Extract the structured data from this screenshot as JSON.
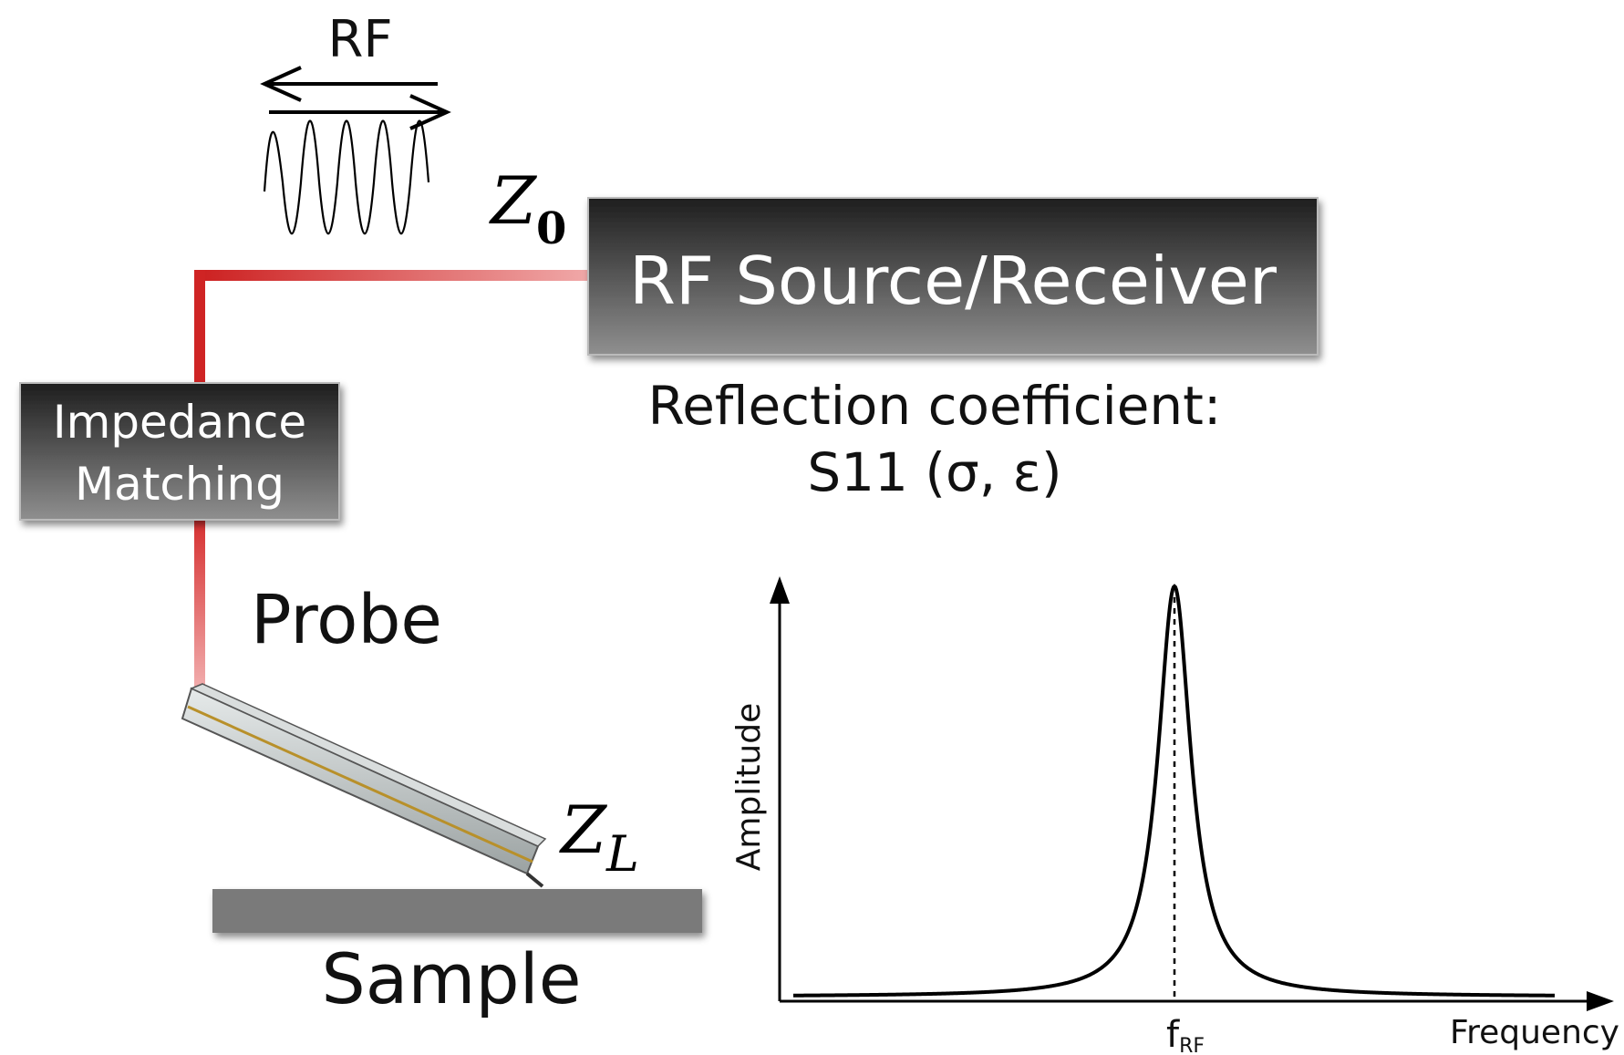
{
  "rf_label": "RF",
  "z0_label": "Z",
  "z0_sub": "0",
  "source_box_label": "RF Source/Receiver",
  "impedance_box_line1": "Impedance",
  "impedance_box_line2": "Matching",
  "reflection_line1": "Reflection coefficient:",
  "reflection_line2": "S11 (σ, ε)",
  "probe_label": "Probe",
  "zl_label": "Z",
  "zl_sub": "L",
  "sample_label": "Sample",
  "chart_data": {
    "type": "line",
    "xlabel": "Frequency",
    "ylabel": "Amplitude",
    "xtick_main": "f",
    "xtick_sub": "RF",
    "series": [
      {
        "name": "",
        "shape": "lorentzian-resonance-peak",
        "peak_at": "f_RF"
      }
    ],
    "peak_marker": "dashed vertical line at f_RF"
  },
  "colors": {
    "cable": "#d42a2a",
    "box_dark": "#2b2b2b",
    "box_light": "#8a8a8a",
    "sample": "#7a7a7a"
  }
}
